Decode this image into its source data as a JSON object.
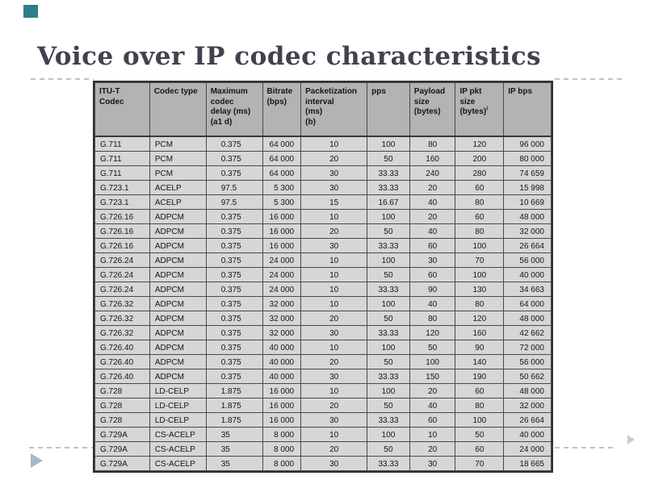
{
  "slide": {
    "title": "Voice over IP codec characteristics"
  },
  "colors": {
    "title": "#42424e",
    "corner_square": "#2e7d8c",
    "triangle": "#a6b8c8",
    "dashes": "#b5c5d2",
    "header_bg": "#b3b3b3",
    "row_bg": "#d6d6d6"
  },
  "table": {
    "headers": [
      {
        "label": "ITU-T\nCodec"
      },
      {
        "label": "Codec type"
      },
      {
        "label": "Maximum\ncodec\ndelay (ms)\n(a1 d)"
      },
      {
        "label": "Bitrate\n(bps)"
      },
      {
        "label": "Packetization\ninterval\n(ms)\n(b)"
      },
      {
        "label": "pps"
      },
      {
        "label": "Payload\nsize\n(bytes)"
      },
      {
        "label": "IP pkt\nsize\n(bytes)",
        "sup": "i"
      },
      {
        "label": "IP bps"
      }
    ],
    "rows": [
      [
        "G.711",
        "PCM",
        "0.375",
        "64 000",
        "10",
        "100",
        "80",
        "120",
        "96 000"
      ],
      [
        "G.711",
        "PCM",
        "0.375",
        "64 000",
        "20",
        "50",
        "160",
        "200",
        "80 000"
      ],
      [
        "G.711",
        "PCM",
        "0.375",
        "64 000",
        "30",
        "33.33",
        "240",
        "280",
        "74 659"
      ],
      [
        "G.723.1",
        "ACELP",
        "97.5",
        "5 300",
        "30",
        "33.33",
        "20",
        "60",
        "15 998"
      ],
      [
        "G.723.1",
        "ACELP",
        "97.5",
        "5 300",
        "15",
        "16.67",
        "40",
        "80",
        "10 669"
      ],
      [
        "G.726.16",
        "ADPCM",
        "0.375",
        "16 000",
        "10",
        "100",
        "20",
        "60",
        "48 000"
      ],
      [
        "G.726.16",
        "ADPCM",
        "0.375",
        "16 000",
        "20",
        "50",
        "40",
        "80",
        "32 000"
      ],
      [
        "G.726.16",
        "ADPCM",
        "0.375",
        "16 000",
        "30",
        "33.33",
        "60",
        "100",
        "26 664"
      ],
      [
        "G.726.24",
        "ADPCM",
        "0.375",
        "24 000",
        "10",
        "100",
        "30",
        "70",
        "56 000"
      ],
      [
        "G.726.24",
        "ADPCM",
        "0.375",
        "24 000",
        "10",
        "50",
        "60",
        "100",
        "40 000"
      ],
      [
        "G.726.24",
        "ADPCM",
        "0.375",
        "24 000",
        "10",
        "33.33",
        "90",
        "130",
        "34 663"
      ],
      [
        "G.726.32",
        "ADPCM",
        "0.375",
        "32 000",
        "10",
        "100",
        "40",
        "80",
        "64 000"
      ],
      [
        "G.726.32",
        "ADPCM",
        "0.375",
        "32 000",
        "20",
        "50",
        "80",
        "120",
        "48 000"
      ],
      [
        "G.726.32",
        "ADPCM",
        "0.375",
        "32 000",
        "30",
        "33.33",
        "120",
        "160",
        "42 662"
      ],
      [
        "G.726.40",
        "ADPCM",
        "0.375",
        "40 000",
        "10",
        "100",
        "50",
        "90",
        "72 000"
      ],
      [
        "G.726.40",
        "ADPCM",
        "0.375",
        "40 000",
        "20",
        "50",
        "100",
        "140",
        "56 000"
      ],
      [
        "G.726.40",
        "ADPCM",
        "0.375",
        "40 000",
        "30",
        "33.33",
        "150",
        "190",
        "50 662"
      ],
      [
        "G.728",
        "LD-CELP",
        "1.875",
        "16 000",
        "10",
        "100",
        "20",
        "60",
        "48 000"
      ],
      [
        "G.728",
        "LD-CELP",
        "1.875",
        "16 000",
        "20",
        "50",
        "40",
        "80",
        "32 000"
      ],
      [
        "G.728",
        "LD-CELP",
        "1.875",
        "16 000",
        "30",
        "33.33",
        "60",
        "100",
        "26 664"
      ],
      [
        "G.729A",
        "CS-ACELP",
        "35",
        "8 000",
        "10",
        "100",
        "10",
        "50",
        "40 000"
      ],
      [
        "G.729A",
        "CS-ACELP",
        "35",
        "8 000",
        "20",
        "50",
        "20",
        "60",
        "24 000"
      ],
      [
        "G.729A",
        "CS-ACELP",
        "35",
        "8 000",
        "30",
        "33.33",
        "30",
        "70",
        "18 665"
      ]
    ]
  },
  "icons": {
    "corner_square": "teal-square-ornament",
    "play_triangle": "play-triangle-icon",
    "next_arrow": "right-arrow-icon"
  }
}
